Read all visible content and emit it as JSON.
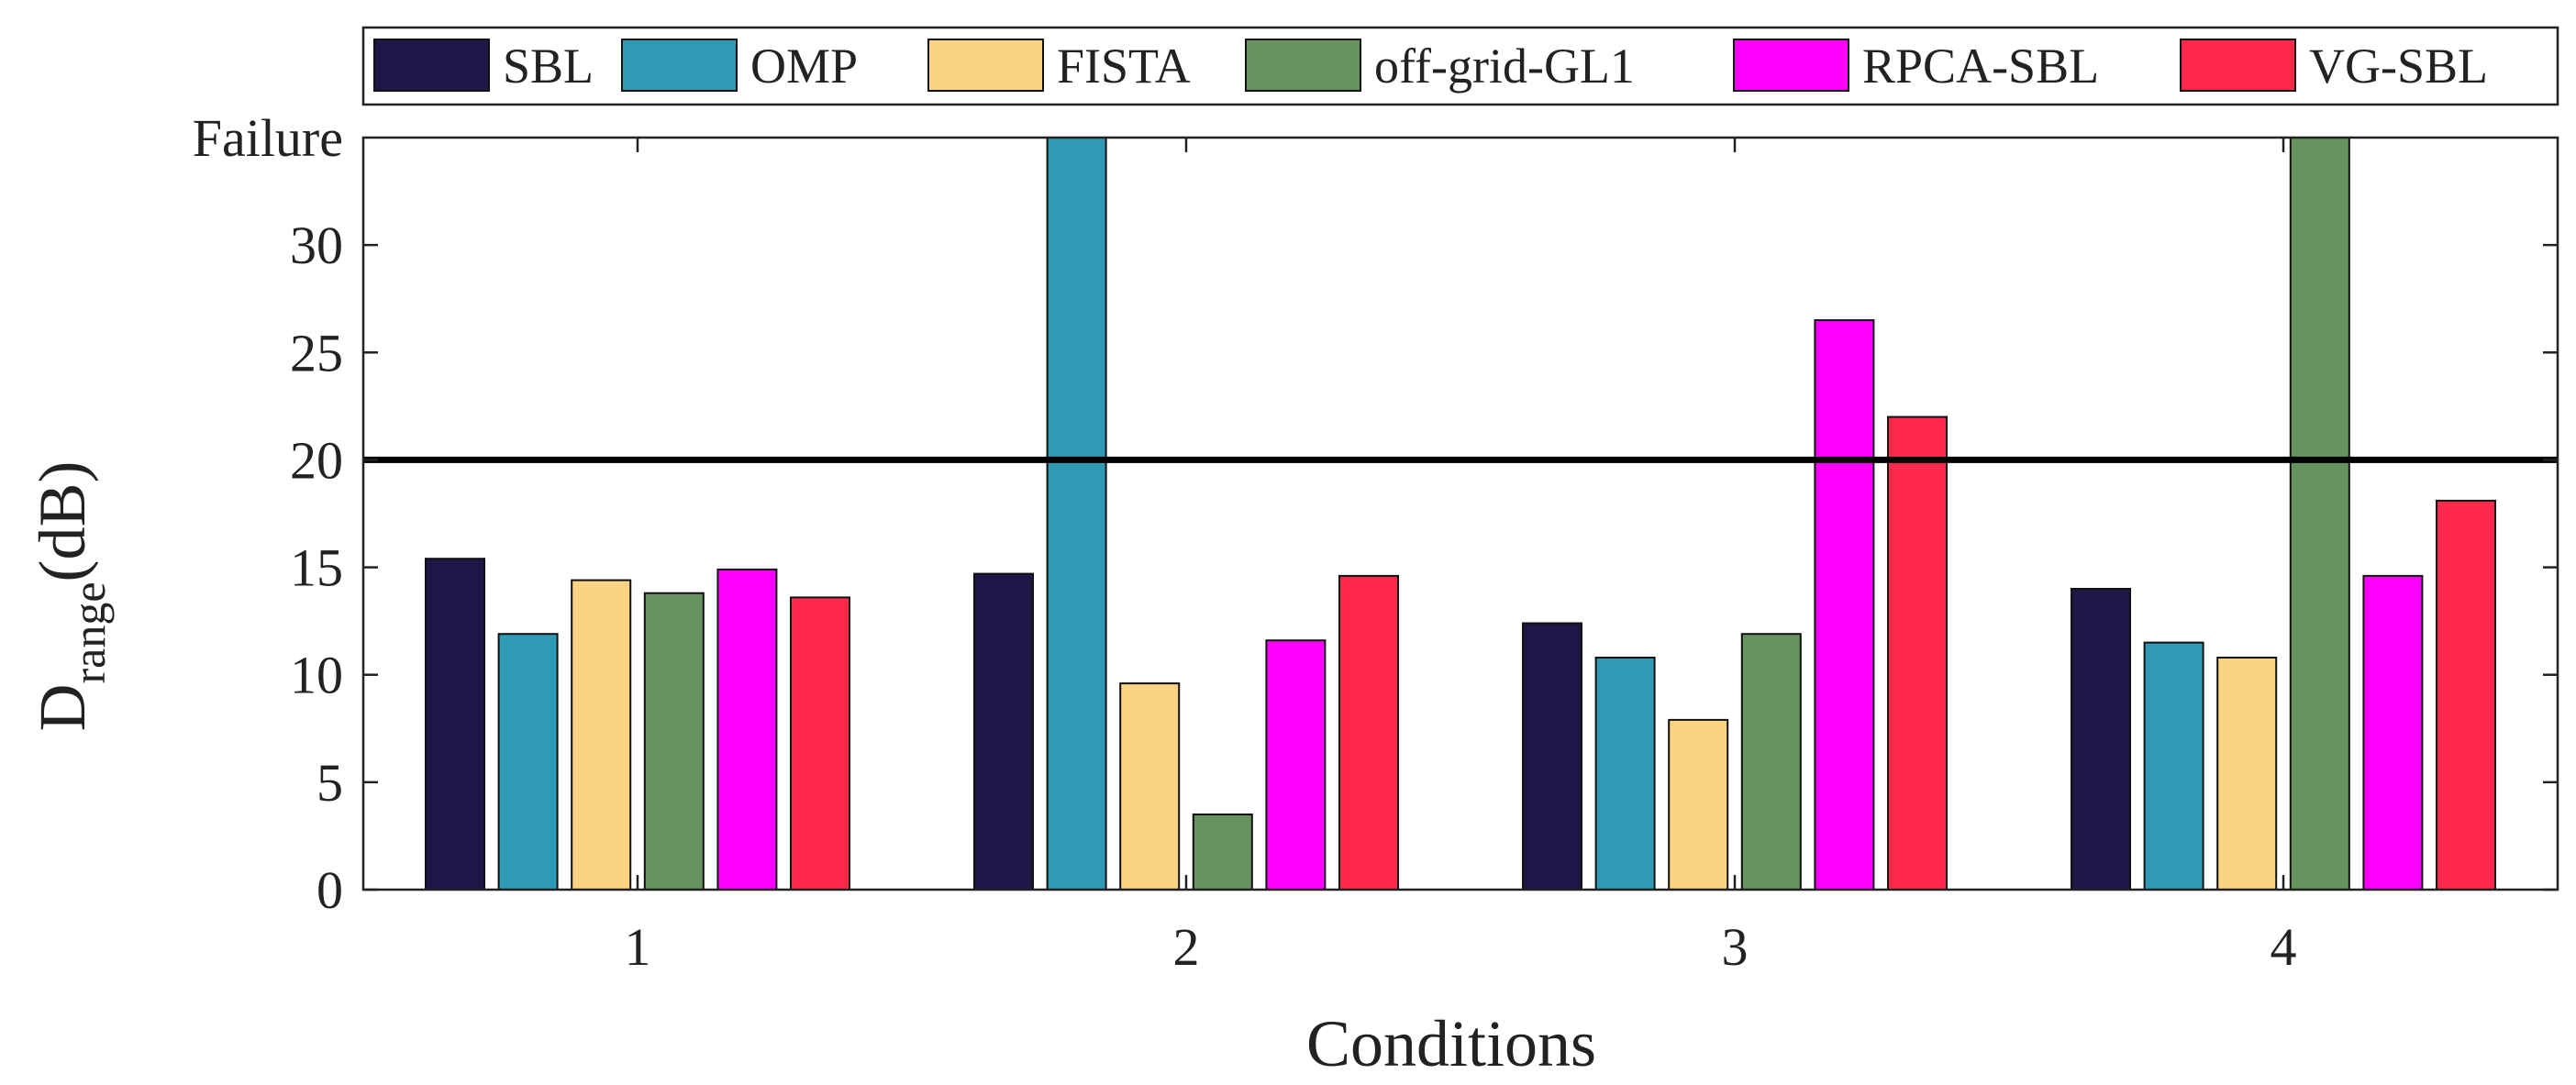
{
  "chart_data": {
    "type": "bar",
    "title": "",
    "xlabel": "Conditions",
    "ylabel": {
      "main": "D",
      "subscript": "range",
      "unit": "(dB)"
    },
    "categories": [
      "1",
      "2",
      "3",
      "4"
    ],
    "ylim": [
      0,
      35
    ],
    "yticks": [
      0,
      5,
      10,
      15,
      20,
      25,
      30
    ],
    "ytick_labels": [
      "0",
      "5",
      "10",
      "15",
      "20",
      "25",
      "30"
    ],
    "failure_label": "Failure",
    "failure_value": 35,
    "threshold": 20,
    "legend_position": "top",
    "series": [
      {
        "name": "SBL",
        "color": "#1e1848",
        "values": [
          15.4,
          14.7,
          12.4,
          14.0
        ]
      },
      {
        "name": "OMP",
        "color": "#2f9ab4",
        "values": [
          11.9,
          35,
          10.8,
          11.5
        ]
      },
      {
        "name": "FISTA",
        "color": "#fad482",
        "values": [
          14.4,
          9.6,
          7.9,
          10.8
        ]
      },
      {
        "name": "off-grid-GL1",
        "color": "#66935e",
        "values": [
          13.8,
          3.5,
          11.9,
          35
        ]
      },
      {
        "name": "RPCA-SBL",
        "color": "#ff00ff",
        "values": [
          14.9,
          11.6,
          26.5,
          14.6
        ]
      },
      {
        "name": "VG-SBL",
        "color": "#ff2a4b",
        "values": [
          13.6,
          14.6,
          22.0,
          18.1
        ]
      }
    ]
  }
}
